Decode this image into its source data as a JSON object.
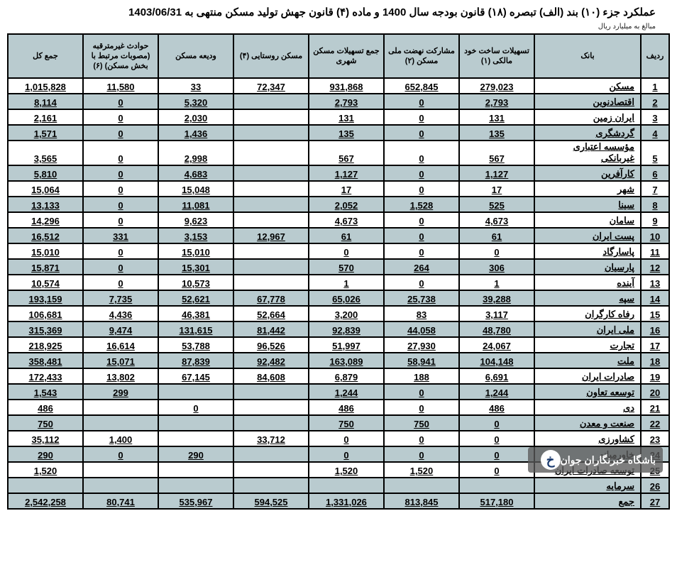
{
  "meta": {
    "title": "عملکرد جزء (۱۰) بند (الف) تبصره (۱۸) قانون بودجه سال 1400 و ماده (۴) قانون جهش تولید مسکن منتهی به  1403/06/31",
    "unit_note": "مبالغ به میلیارد ریال"
  },
  "columns": {
    "radif": "ردیف",
    "bank": "بانک",
    "c1": "تسهیلات ساخت خود مالکی\n(۱)",
    "c2": "مشارکت نهضت ملی مسکن\n(۲)",
    "c3": "جمع تسهیلات مسکن شهری",
    "c4": "مسکن روستایی\n(۴)",
    "c5": "ودیعه مسکن",
    "c6": "حوادث غیرمترقبه (مصوبات مرتبط با بخش مسکن)\n(۶)",
    "total": "جمع کل"
  },
  "rows": [
    {
      "n": "1",
      "bank": "مسکن",
      "c1": "279,023",
      "c2": "652,845",
      "c3": "931,868",
      "c4": "72,347",
      "c5": "33",
      "c6": "11,580",
      "t": "1,015,828"
    },
    {
      "n": "2",
      "bank": "اقتصادنوین",
      "c1": "2,793",
      "c2": "0",
      "c3": "2,793",
      "c4": "",
      "c5": "5,320",
      "c6": "0",
      "t": "8,114"
    },
    {
      "n": "3",
      "bank": "ایران زمین",
      "c1": "131",
      "c2": "0",
      "c3": "131",
      "c4": "",
      "c5": "2,030",
      "c6": "0",
      "t": "2,161"
    },
    {
      "n": "4",
      "bank": "گردشگری",
      "c1": "135",
      "c2": "0",
      "c3": "135",
      "c4": "",
      "c5": "1,436",
      "c6": "0",
      "t": "1,571"
    },
    {
      "n": "5",
      "bank": "مؤسسه اعتباری غیربانکی",
      "c1": "567",
      "c2": "0",
      "c3": "567",
      "c4": "",
      "c5": "2,998",
      "c6": "0",
      "t": "3,565"
    },
    {
      "n": "6",
      "bank": "کارآفرین",
      "c1": "1,127",
      "c2": "0",
      "c3": "1,127",
      "c4": "",
      "c5": "4,683",
      "c6": "0",
      "t": "5,810"
    },
    {
      "n": "7",
      "bank": "شهر",
      "c1": "17",
      "c2": "0",
      "c3": "17",
      "c4": "",
      "c5": "15,048",
      "c6": "0",
      "t": "15,064"
    },
    {
      "n": "8",
      "bank": "سینا",
      "c1": "525",
      "c2": "1,528",
      "c3": "2,052",
      "c4": "",
      "c5": "11,081",
      "c6": "0",
      "t": "13,133"
    },
    {
      "n": "9",
      "bank": "سامان",
      "c1": "4,673",
      "c2": "0",
      "c3": "4,673",
      "c4": "",
      "c5": "9,623",
      "c6": "0",
      "t": "14,296"
    },
    {
      "n": "10",
      "bank": "پست ایران",
      "c1": "61",
      "c2": "0",
      "c3": "61",
      "c4": "12,967",
      "c5": "3,153",
      "c6": "331",
      "t": "16,512"
    },
    {
      "n": "11",
      "bank": "پاسارگاد",
      "c1": "0",
      "c2": "0",
      "c3": "0",
      "c4": "",
      "c5": "15,010",
      "c6": "0",
      "t": "15,010"
    },
    {
      "n": "12",
      "bank": "پارسیان",
      "c1": "306",
      "c2": "264",
      "c3": "570",
      "c4": "",
      "c5": "15,301",
      "c6": "0",
      "t": "15,871"
    },
    {
      "n": "13",
      "bank": "آینده",
      "c1": "1",
      "c2": "0",
      "c3": "1",
      "c4": "",
      "c5": "10,573",
      "c6": "0",
      "t": "10,574"
    },
    {
      "n": "14",
      "bank": "سپه",
      "c1": "39,288",
      "c2": "25,738",
      "c3": "65,026",
      "c4": "67,778",
      "c5": "52,621",
      "c6": "7,735",
      "t": "193,159"
    },
    {
      "n": "15",
      "bank": "رفاه کارگران",
      "c1": "3,117",
      "c2": "83",
      "c3": "3,200",
      "c4": "52,664",
      "c5": "46,381",
      "c6": "4,436",
      "t": "106,681"
    },
    {
      "n": "16",
      "bank": "ملی ایران",
      "c1": "48,780",
      "c2": "44,058",
      "c3": "92,839",
      "c4": "81,442",
      "c5": "131,615",
      "c6": "9,474",
      "t": "315,369"
    },
    {
      "n": "17",
      "bank": "تجارت",
      "c1": "24,067",
      "c2": "27,930",
      "c3": "51,997",
      "c4": "96,526",
      "c5": "53,788",
      "c6": "16,614",
      "t": "218,925"
    },
    {
      "n": "18",
      "bank": "ملت",
      "c1": "104,148",
      "c2": "58,941",
      "c3": "163,089",
      "c4": "92,482",
      "c5": "87,839",
      "c6": "15,071",
      "t": "358,481"
    },
    {
      "n": "19",
      "bank": "صادرات ایران",
      "c1": "6,691",
      "c2": "188",
      "c3": "6,879",
      "c4": "84,608",
      "c5": "67,145",
      "c6": "13,802",
      "t": "172,433"
    },
    {
      "n": "20",
      "bank": "توسعه تعاون",
      "c1": "1,244",
      "c2": "0",
      "c3": "1,244",
      "c4": "",
      "c5": "",
      "c6": "299",
      "t": "1,543"
    },
    {
      "n": "21",
      "bank": "دی",
      "c1": "486",
      "c2": "0",
      "c3": "486",
      "c4": "",
      "c5": "0",
      "c6": "",
      "t": "486"
    },
    {
      "n": "22",
      "bank": "صنعت و معدن",
      "c1": "0",
      "c2": "750",
      "c3": "750",
      "c4": "",
      "c5": "",
      "c6": "",
      "t": "750"
    },
    {
      "n": "23",
      "bank": "کشاورزی",
      "c1": "0",
      "c2": "0",
      "c3": "0",
      "c4": "33,712",
      "c5": "",
      "c6": "1,400",
      "t": "35,112"
    },
    {
      "n": "24",
      "bank": "خاورمیانه",
      "c1": "0",
      "c2": "0",
      "c3": "0",
      "c4": "",
      "c5": "290",
      "c6": "0",
      "t": "290"
    },
    {
      "n": "25",
      "bank": "توسعه صادرات ایران",
      "c1": "0",
      "c2": "1,520",
      "c3": "1,520",
      "c4": "",
      "c5": "",
      "c6": "",
      "t": "1,520"
    },
    {
      "n": "26",
      "bank": "سرمایه",
      "c1": "",
      "c2": "",
      "c3": "",
      "c4": "",
      "c5": "",
      "c6": "",
      "t": ""
    }
  ],
  "total": {
    "n": "27",
    "bank": "جمع",
    "c1": "517,180",
    "c2": "813,845",
    "c3": "1,331,026",
    "c4": "594,525",
    "c5": "535,967",
    "c6": "80,741",
    "t": "2,542,258"
  },
  "watermark": {
    "text": "باشگاه خبرنگاران جوان",
    "logo_letter": "خ"
  },
  "style": {
    "header_bg": "#b9cbcf",
    "odd_bg": "#b9cbcf",
    "even_bg": "#ffffff",
    "border_color": "#000000",
    "title_fontsize": 15,
    "th_fontsize": 11,
    "td_fontsize": 13
  }
}
